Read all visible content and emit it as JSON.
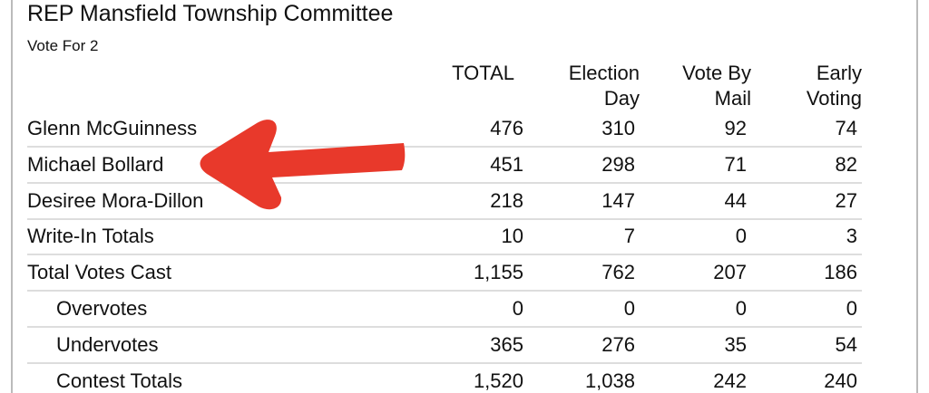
{
  "header": {
    "title": "REP Mansfield Township Committee",
    "subtitle": "Vote For 2"
  },
  "table": {
    "columns": [
      [
        "TOTAL"
      ],
      [
        "Election",
        "Day"
      ],
      [
        "Vote By",
        "Mail"
      ],
      [
        "Early",
        "Voting"
      ]
    ],
    "rows": [
      {
        "label": "Glenn McGuinness",
        "cells": [
          "476",
          "310",
          "92",
          "74"
        ]
      },
      {
        "label": "Michael Bollard",
        "cells": [
          "451",
          "298",
          "71",
          "82"
        ]
      },
      {
        "label": "Desiree Mora-Dillon",
        "cells": [
          "218",
          "147",
          "44",
          "27"
        ]
      },
      {
        "label": "Write-In Totals",
        "cells": [
          "10",
          "7",
          "0",
          "3"
        ]
      },
      {
        "label": "Total Votes Cast",
        "cells": [
          "1,155",
          "762",
          "207",
          "186"
        ]
      },
      {
        "label": "Overvotes",
        "indent": true,
        "cells": [
          "0",
          "0",
          "0",
          "0"
        ]
      },
      {
        "label": "Undervotes",
        "indent": true,
        "cells": [
          "365",
          "276",
          "35",
          "54"
        ]
      },
      {
        "label": "Contest Totals",
        "indent": true,
        "cells": [
          "1,520",
          "1,038",
          "242",
          "240"
        ]
      }
    ]
  }
}
